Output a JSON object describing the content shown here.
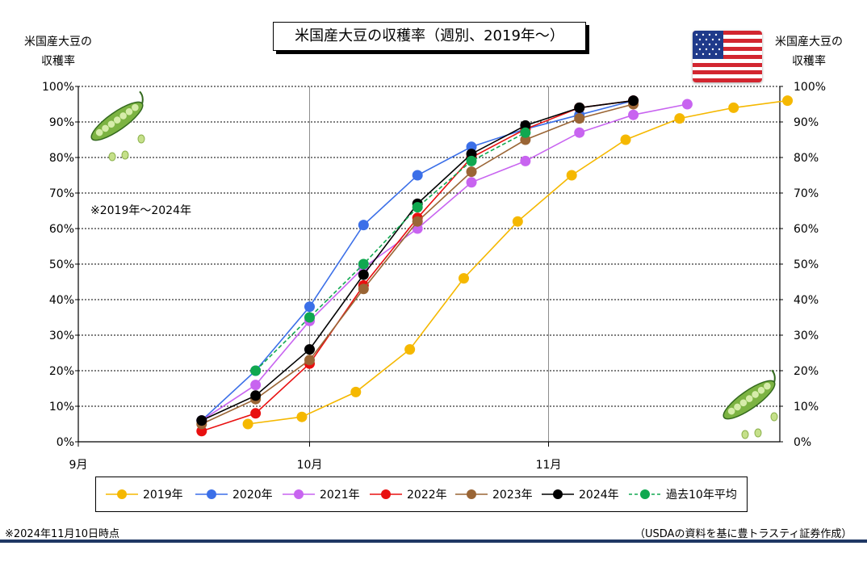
{
  "title": "米国産大豆の収穫率（週別、2019年～）",
  "left_unit_label": [
    "米国産大豆の",
    "収穫率"
  ],
  "right_unit_label": [
    "米国産大豆の",
    "収穫率"
  ],
  "note_period": "※2019年～2024年",
  "footnote_left": "※2024年11月10日時点",
  "footnote_right": "（USDAの資料を基に豊トラスティ証券作成）",
  "flag_icon": "us-flag-icon",
  "decoration_icon": "soybean-pod-icon",
  "chart_data": {
    "type": "line",
    "x_unit": "day-of-season (Sep 1 = 0)",
    "xlim": [
      0,
      91
    ],
    "ylim": [
      0,
      100
    ],
    "y_ticks": [
      "0%",
      "10%",
      "20%",
      "30%",
      "40%",
      "50%",
      "60%",
      "70%",
      "80%",
      "90%",
      "100%"
    ],
    "x_ticks": [
      {
        "label": "9月",
        "x": 0
      },
      {
        "label": "10月",
        "x": 30
      },
      {
        "label": "11月",
        "x": 61
      }
    ],
    "grid": {
      "horizontal": "dotted",
      "vertical": "solid-at-month-start"
    },
    "legend_position": "bottom",
    "series": [
      {
        "name": "2019年",
        "color": "#f5b800",
        "dashed": false,
        "points": [
          [
            22,
            5
          ],
          [
            29,
            7
          ],
          [
            36,
            14
          ],
          [
            43,
            26
          ],
          [
            50,
            46
          ],
          [
            57,
            62
          ],
          [
            64,
            75
          ],
          [
            71,
            85
          ],
          [
            78,
            91
          ],
          [
            85,
            94
          ],
          [
            92,
            96
          ]
        ]
      },
      {
        "name": "2020年",
        "color": "#3b6fe8",
        "dashed": false,
        "points": [
          [
            16,
            6
          ],
          [
            23,
            20
          ],
          [
            30,
            38
          ],
          [
            37,
            61
          ],
          [
            44,
            75
          ],
          [
            51,
            83
          ],
          [
            58,
            88
          ],
          [
            65,
            92
          ],
          [
            72,
            96
          ]
        ]
      },
      {
        "name": "2021年",
        "color": "#c864f0",
        "dashed": false,
        "points": [
          [
            16,
            6
          ],
          [
            23,
            16
          ],
          [
            30,
            34
          ],
          [
            37,
            49
          ],
          [
            44,
            60
          ],
          [
            51,
            73
          ],
          [
            58,
            79
          ],
          [
            65,
            87
          ],
          [
            72,
            92
          ],
          [
            79,
            95
          ]
        ]
      },
      {
        "name": "2022年",
        "color": "#e81010",
        "dashed": false,
        "points": [
          [
            16,
            3
          ],
          [
            23,
            8
          ],
          [
            30,
            22
          ],
          [
            37,
            44
          ],
          [
            44,
            63
          ],
          [
            51,
            80
          ],
          [
            58,
            88
          ],
          [
            65,
            94
          ],
          [
            72,
            96
          ]
        ]
      },
      {
        "name": "2023年",
        "color": "#9a6535",
        "dashed": false,
        "points": [
          [
            16,
            5
          ],
          [
            23,
            12
          ],
          [
            30,
            23
          ],
          [
            37,
            43
          ],
          [
            44,
            62
          ],
          [
            51,
            76
          ],
          [
            58,
            85
          ],
          [
            65,
            91
          ],
          [
            72,
            95
          ]
        ]
      },
      {
        "name": "2024年",
        "color": "#000000",
        "dashed": false,
        "points": [
          [
            16,
            6
          ],
          [
            23,
            13
          ],
          [
            30,
            26
          ],
          [
            37,
            47
          ],
          [
            44,
            67
          ],
          [
            51,
            81
          ],
          [
            58,
            89
          ],
          [
            65,
            94
          ],
          [
            72,
            96
          ]
        ]
      },
      {
        "name": "過去10年平均",
        "color": "#10a850",
        "dashed": true,
        "points": [
          [
            23,
            20
          ],
          [
            30,
            35
          ],
          [
            37,
            50
          ],
          [
            44,
            66
          ],
          [
            51,
            79
          ],
          [
            58,
            87
          ]
        ]
      }
    ]
  }
}
